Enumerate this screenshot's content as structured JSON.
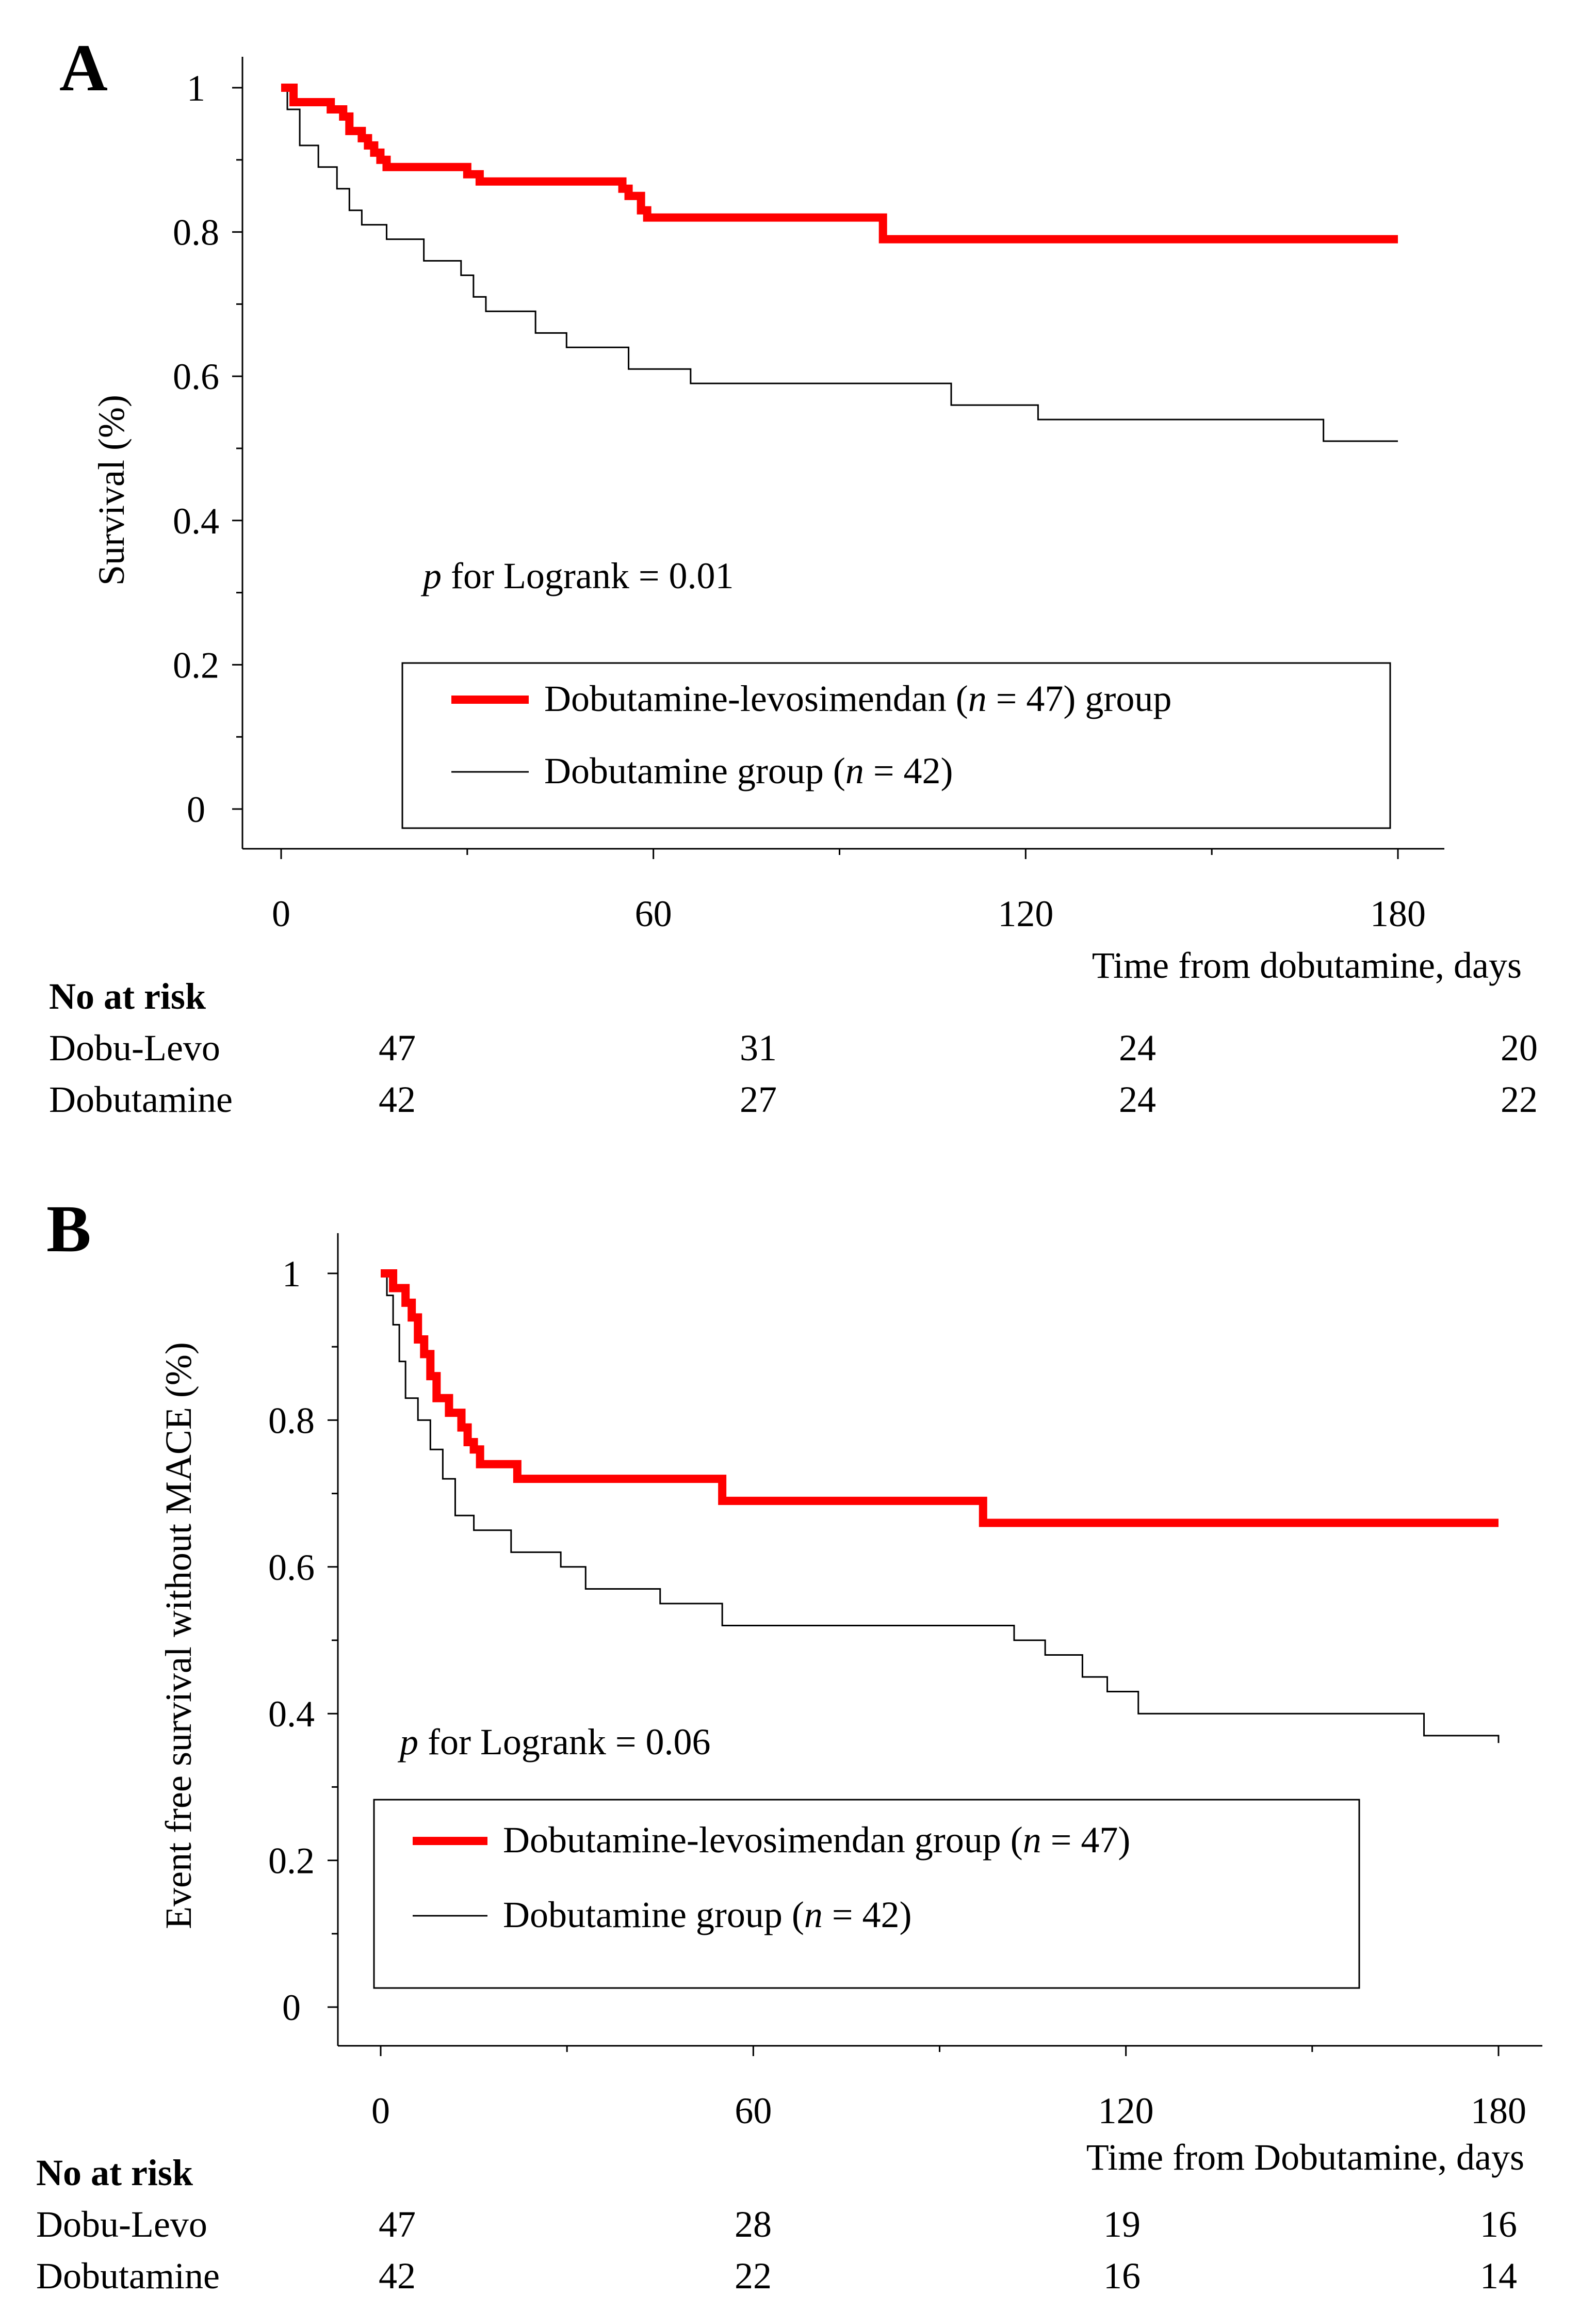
{
  "chart_data": [
    {
      "type": "line",
      "panel": "A",
      "ylabel": "Survival (%)",
      "xlabel": "Time from dobutamine, days",
      "xlim": [
        0,
        180
      ],
      "ylim": [
        0,
        1
      ],
      "x_ticks": [
        "0",
        "60",
        "120",
        "180"
      ],
      "y_ticks": [
        "0",
        "0.2",
        "0.4",
        "0.6",
        "0.8",
        "1"
      ],
      "annotation": {
        "italic": "p",
        "text": " for Logrank = 0.01"
      },
      "series": [
        {
          "name": "Dobutamine-levosimendan",
          "legend": {
            "pre": "Dobutamine-levosimendan (",
            "italic": "n",
            "post": " = 47) group"
          },
          "color": "#ff0000",
          "points": [
            [
              0,
              1
            ],
            [
              1,
              1
            ],
            [
              2,
              0.98
            ],
            [
              8,
              0.97
            ],
            [
              10,
              0.96
            ],
            [
              11,
              0.94
            ],
            [
              13,
              0.93
            ],
            [
              14,
              0.92
            ],
            [
              15,
              0.91
            ],
            [
              16,
              0.9
            ],
            [
              17,
              0.89
            ],
            [
              30,
              0.88
            ],
            [
              32,
              0.87
            ],
            [
              55,
              0.86
            ],
            [
              56,
              0.85
            ],
            [
              58,
              0.83
            ],
            [
              59,
              0.82
            ],
            [
              97,
              0.79
            ],
            [
              180,
              0.79
            ]
          ]
        },
        {
          "name": "Dobutamine",
          "legend": {
            "pre": "Dobutamine group (",
            "italic": "n",
            "post": " = 42)"
          },
          "color": "#000000",
          "points": [
            [
              0,
              1
            ],
            [
              1,
              0.97
            ],
            [
              3,
              0.92
            ],
            [
              6,
              0.89
            ],
            [
              9,
              0.86
            ],
            [
              11,
              0.83
            ],
            [
              13,
              0.81
            ],
            [
              17,
              0.79
            ],
            [
              23,
              0.76
            ],
            [
              29,
              0.74
            ],
            [
              31,
              0.71
            ],
            [
              33,
              0.69
            ],
            [
              41,
              0.66
            ],
            [
              46,
              0.64
            ],
            [
              56,
              0.61
            ],
            [
              66,
              0.59
            ],
            [
              108,
              0.56
            ],
            [
              122,
              0.54
            ],
            [
              168,
              0.51
            ],
            [
              180,
              0.51
            ]
          ]
        }
      ],
      "risk_table": {
        "title": "No at risk",
        "rows": [
          {
            "label": "Dobu-Levo",
            "values": [
              "47",
              "31",
              "24",
              "20"
            ]
          },
          {
            "label": "Dobutamine",
            "values": [
              "42",
              "27",
              "24",
              "22"
            ]
          }
        ]
      }
    },
    {
      "type": "line",
      "panel": "B",
      "ylabel": "Event free survival without MACE (%)",
      "xlabel": "Time from Dobutamine, days",
      "xlim": [
        0,
        180
      ],
      "ylim": [
        0,
        1
      ],
      "x_ticks": [
        "0",
        "60",
        "120",
        "180"
      ],
      "y_ticks": [
        "0",
        "0.2",
        "0.4",
        "0.6",
        "0.8",
        "1"
      ],
      "annotation": {
        "italic": "p",
        "text": " for Logrank = 0.06"
      },
      "series": [
        {
          "name": "Dobutamine-levosimendan",
          "legend": {
            "pre": "Dobutamine-levosimendan group (",
            "italic": "n",
            "post": " = 47)"
          },
          "color": "#ff0000",
          "points": [
            [
              0,
              1
            ],
            [
              2,
              0.98
            ],
            [
              4,
              0.96
            ],
            [
              5,
              0.94
            ],
            [
              6,
              0.91
            ],
            [
              7,
              0.89
            ],
            [
              8,
              0.86
            ],
            [
              9,
              0.83
            ],
            [
              11,
              0.81
            ],
            [
              13,
              0.79
            ],
            [
              14,
              0.77
            ],
            [
              15,
              0.76
            ],
            [
              16,
              0.74
            ],
            [
              22,
              0.72
            ],
            [
              55,
              0.69
            ],
            [
              97,
              0.66
            ],
            [
              180,
              0.66
            ]
          ]
        },
        {
          "name": "Dobutamine",
          "legend": {
            "pre": "Dobutamine group (",
            "italic": "n",
            "post": " = 42)"
          },
          "color": "#000000",
          "points": [
            [
              0,
              1
            ],
            [
              1,
              0.97
            ],
            [
              2,
              0.93
            ],
            [
              3,
              0.88
            ],
            [
              4,
              0.83
            ],
            [
              6,
              0.8
            ],
            [
              8,
              0.76
            ],
            [
              10,
              0.72
            ],
            [
              12,
              0.67
            ],
            [
              15,
              0.65
            ],
            [
              21,
              0.62
            ],
            [
              29,
              0.6
            ],
            [
              33,
              0.57
            ],
            [
              45,
              0.55
            ],
            [
              55,
              0.52
            ],
            [
              102,
              0.5
            ],
            [
              107,
              0.48
            ],
            [
              113,
              0.45
            ],
            [
              117,
              0.43
            ],
            [
              122,
              0.4
            ],
            [
              168,
              0.37
            ],
            [
              180,
              0.36
            ]
          ]
        }
      ],
      "risk_table": {
        "title": "No at risk",
        "rows": [
          {
            "label": "Dobu-Levo",
            "values": [
              "47",
              "28",
              "19",
              "16"
            ]
          },
          {
            "label": "Dobutamine",
            "values": [
              "42",
              "22",
              "16",
              "14"
            ]
          }
        ]
      }
    }
  ]
}
